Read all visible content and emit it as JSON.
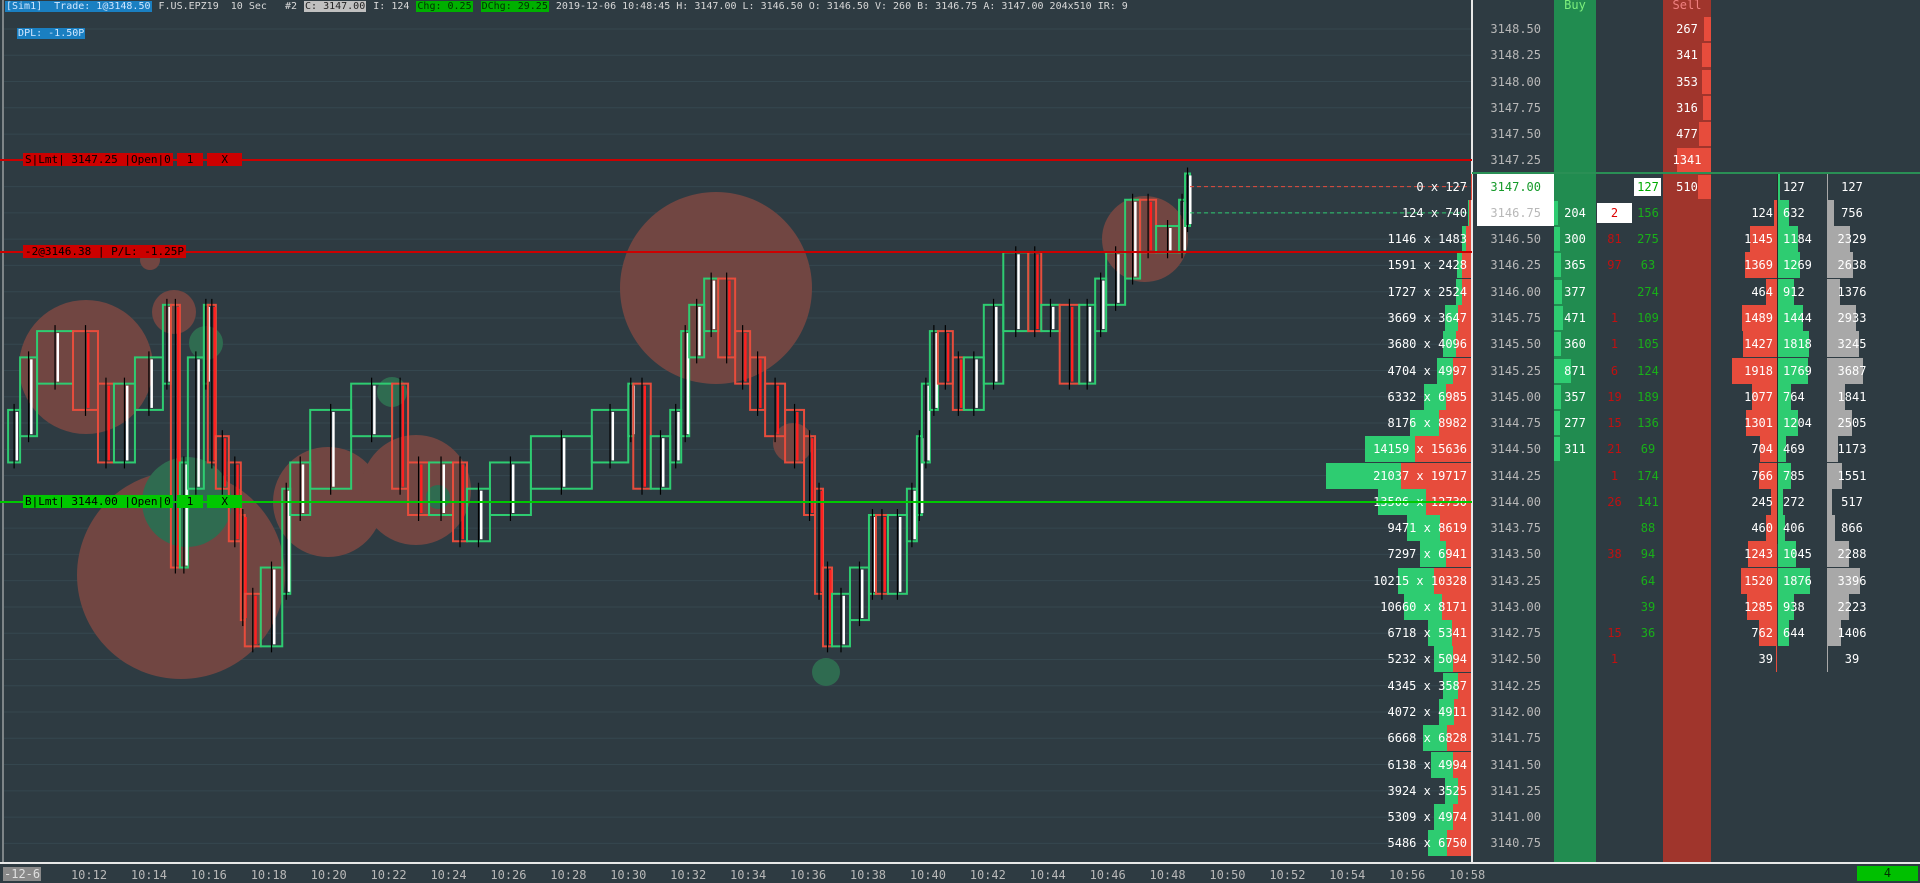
{
  "header": {
    "line1": [
      {
        "text": "[Sim1]  Trade: 1@3148.50",
        "bg": "#1a7fc1",
        "fg": "#cfe6ff"
      },
      {
        "text": " F.US.EPZ19  10 Sec   #2 ",
        "bg": "",
        "fg": "#d8d8d8"
      },
      {
        "text": "C: 3147.00",
        "bg": "#c0c0c0",
        "fg": "#222222"
      },
      {
        "text": " I: 124 ",
        "bg": "",
        "fg": "#d8d8d8"
      },
      {
        "text": "Chg: 0.25",
        "bg": "#00b000",
        "fg": "#003300"
      },
      {
        "text": " ",
        "bg": "",
        "fg": "#d8d8d8"
      },
      {
        "text": "DChg: 29.25",
        "bg": "#00b000",
        "fg": "#003300"
      },
      {
        "text": " 2019-12-06 10:48:45 H: 3147.00 L: 3146.50 O: 3146.50 V: 260 B: 3146.75 A: 3147.00 204x510 IR: 9",
        "bg": "",
        "fg": "#d8d8d8"
      }
    ],
    "line2": {
      "text": "DPL: -1.50P",
      "bg": "#1a7fc1",
      "fg": "#cfe6ff"
    }
  },
  "orders": {
    "sell_limit": {
      "label": "S|Lmt| 3147.25 |Open|0",
      "qty": "1",
      "cancel": "X",
      "price": 3147.25,
      "color": "#cc0000"
    },
    "position": {
      "label": "-2@3146.38 | P/L: -1.25P",
      "price": 3146.38,
      "color": "#cc0000"
    },
    "buy_limit": {
      "label": "B|Lmt| 3144.00 |Open|0",
      "qty": "1",
      "cancel": "X",
      "price": 3144.0,
      "color": "#00c800"
    }
  },
  "colors": {
    "up": "#2ecc71",
    "down": "#e74c3c",
    "buy_col": "#218c50",
    "sell_col": "#a0352c",
    "bg": "#2e3b42",
    "total": "#a8a8a8"
  },
  "price_path": [
    [
      "10:09:18",
      3144.5
    ],
    [
      "10:09:42",
      3144.75
    ],
    [
      "10:10:16",
      3145.25
    ],
    [
      "10:11:28",
      3145.5
    ],
    [
      "10:12:18",
      3145.0
    ],
    [
      "10:12:50",
      3144.5
    ],
    [
      "10:13:32",
      3145.0
    ],
    [
      "10:14:28",
      3145.25
    ],
    [
      "10:14:44",
      3145.75
    ],
    [
      "10:15:02",
      3143.5
    ],
    [
      "10:15:18",
      3144.25
    ],
    [
      "10:15:50",
      3145.25
    ],
    [
      "10:15:58",
      3145.75
    ],
    [
      "10:16:14",
      3144.5
    ],
    [
      "10:16:40",
      3144.25
    ],
    [
      "10:17:04",
      3143.75
    ],
    [
      "10:17:12",
      3143.0
    ],
    [
      "10:17:44",
      3142.75
    ],
    [
      "10:18:27",
      3143.25
    ],
    [
      "10:18:43",
      3144.0
    ],
    [
      "10:19:23",
      3144.25
    ],
    [
      "10:20:45",
      3144.75
    ],
    [
      "10:22:07",
      3145.0
    ],
    [
      "10:22:39",
      3144.25
    ],
    [
      "10:23:21",
      3144.0
    ],
    [
      "10:24:09",
      3144.25
    ],
    [
      "10:24:37",
      3143.75
    ],
    [
      "10:25:23",
      3144.0
    ],
    [
      "10:26:45",
      3144.25
    ],
    [
      "10:28:47",
      3144.5
    ],
    [
      "10:30:00",
      3144.75
    ],
    [
      "10:30:10",
      3145.0
    ],
    [
      "10:30:45",
      3144.25
    ],
    [
      "10:31:24",
      3144.5
    ],
    [
      "10:31:46",
      3144.75
    ],
    [
      "10:32:02",
      3145.5
    ],
    [
      "10:32:32",
      3145.75
    ],
    [
      "10:33:00",
      3146.0
    ],
    [
      "10:33:34",
      3145.5
    ],
    [
      "10:34:04",
      3145.25
    ],
    [
      "10:34:34",
      3145.0
    ],
    [
      "10:35:14",
      3144.75
    ],
    [
      "10:35:52",
      3144.5
    ],
    [
      "10:36:14",
      3144.0
    ],
    [
      "10:36:30",
      3143.25
    ],
    [
      "10:36:48",
      3142.75
    ],
    [
      "10:37:24",
      3143.0
    ],
    [
      "10:38:02",
      3143.25
    ],
    [
      "10:38:16",
      3143.75
    ],
    [
      "10:38:40",
      3143.25
    ],
    [
      "10:39:18",
      3143.75
    ],
    [
      "10:39:38",
      3144.0
    ],
    [
      "10:39:48",
      3144.5
    ],
    [
      "10:40:04",
      3145.0
    ],
    [
      "10:40:20",
      3145.5
    ],
    [
      "10:40:50",
      3145.25
    ],
    [
      "10:41:12",
      3145.0
    ],
    [
      "10:41:52",
      3145.25
    ],
    [
      "10:42:31",
      3145.75
    ],
    [
      "10:43:21",
      3146.25
    ],
    [
      "10:43:47",
      3145.75
    ],
    [
      "10:44:24",
      3145.75
    ],
    [
      "10:45:03",
      3145.25
    ],
    [
      "10:45:35",
      3145.75
    ],
    [
      "10:45:57",
      3146.0
    ],
    [
      "10:46:35",
      3146.25
    ],
    [
      "10:47:05",
      3146.75
    ],
    [
      "10:47:37",
      3146.5
    ],
    [
      "10:48:23",
      3146.5
    ],
    [
      "10:48:35",
      3146.75
    ],
    [
      "10:48:45",
      3147.0
    ]
  ],
  "time_axis": {
    "date_label": "-12-6",
    "labels": [
      "10:12",
      "10:14",
      "10:16",
      "10:18",
      "10:20",
      "10:22",
      "10:24",
      "10:26",
      "10:28",
      "10:30",
      "10:32",
      "10:34",
      "10:36",
      "10:38",
      "10:40",
      "10:42",
      "10:44",
      "10:46",
      "10:48",
      "10:50",
      "10:52",
      "10:54",
      "10:56",
      "10:58"
    ]
  },
  "status_badge": "4",
  "ladder": {
    "buy_header": "Buy",
    "sell_header": "Sell",
    "rows": [
      {
        "price": "3148.50",
        "sell": 267
      },
      {
        "price": "3148.25",
        "sell": 341
      },
      {
        "price": "3148.00",
        "sell": 353
      },
      {
        "price": "3147.75",
        "sell": 316
      },
      {
        "price": "3147.50",
        "sell": 477
      },
      {
        "price": "3147.25",
        "sell": 1341
      },
      {
        "price": "3147.00",
        "bid": 0,
        "ask": 127,
        "sell": 510,
        "ask_small": 127,
        "buy_vol": 127,
        "total": 127
      },
      {
        "price": "3146.75",
        "bid": 124,
        "ask": 740,
        "buy": 204,
        "bid_small": 2,
        "ask_small": 156,
        "sell_vol": 124,
        "buy_vol": 632,
        "total": 756
      },
      {
        "price": "3146.50",
        "bid": 1146,
        "ask": 1483,
        "buy": 300,
        "bid_small": 81,
        "ask_small": 275,
        "sell_vol": 1145,
        "buy_vol": 1184,
        "total": 2329
      },
      {
        "price": "3146.25",
        "bid": 1591,
        "ask": 2428,
        "buy": 365,
        "bid_small": 97,
        "ask_small": 63,
        "sell_vol": 1369,
        "buy_vol": 1269,
        "total": 2638
      },
      {
        "price": "3146.00",
        "bid": 1727,
        "ask": 2524,
        "buy": 377,
        "ask_small": 274,
        "sell_vol": 464,
        "buy_vol": 912,
        "total": 1376
      },
      {
        "price": "3145.75",
        "bid": 3669,
        "ask": 3647,
        "buy": 471,
        "bid_small": 1,
        "ask_small": 109,
        "sell_vol": 1489,
        "buy_vol": 1444,
        "total": 2933
      },
      {
        "price": "3145.50",
        "bid": 3680,
        "ask": 4096,
        "buy": 360,
        "bid_small": 1,
        "ask_small": 105,
        "sell_vol": 1427,
        "buy_vol": 1818,
        "total": 3245
      },
      {
        "price": "3145.25",
        "bid": 4704,
        "ask": 4997,
        "buy": 871,
        "bid_small": 6,
        "ask_small": 124,
        "sell_vol": 1918,
        "buy_vol": 1769,
        "total": 3687
      },
      {
        "price": "3145.00",
        "bid": 6332,
        "ask": 6985,
        "buy": 357,
        "bid_small": 19,
        "ask_small": 189,
        "sell_vol": 1077,
        "buy_vol": 764,
        "total": 1841
      },
      {
        "price": "3144.75",
        "bid": 8176,
        "ask": 8982,
        "buy": 277,
        "bid_small": 15,
        "ask_small": 136,
        "sell_vol": 1301,
        "buy_vol": 1204,
        "total": 2505
      },
      {
        "price": "3144.50",
        "bid": 14159,
        "ask": 15636,
        "buy": 311,
        "bid_small": 21,
        "ask_small": 69,
        "sell_vol": 704,
        "buy_vol": 469,
        "total": 1173
      },
      {
        "price": "3144.25",
        "bid": 21037,
        "ask": 19717,
        "bid_small": 1,
        "ask_small": 174,
        "sell_vol": 766,
        "buy_vol": 785,
        "total": 1551
      },
      {
        "price": "3144.00",
        "bid": 13506,
        "ask": 12730,
        "bid_small": 26,
        "ask_small": 141,
        "sell_vol": 245,
        "buy_vol": 272,
        "total": 517
      },
      {
        "price": "3143.75",
        "bid": 9471,
        "ask": 8619,
        "ask_small": 88,
        "sell_vol": 460,
        "buy_vol": 406,
        "total": 866
      },
      {
        "price": "3143.50",
        "bid": 7297,
        "ask": 6941,
        "bid_small": 38,
        "ask_small": 94,
        "sell_vol": 1243,
        "buy_vol": 1045,
        "total": 2288
      },
      {
        "price": "3143.25",
        "bid": 10215,
        "ask": 10328,
        "ask_small": 64,
        "sell_vol": 1520,
        "buy_vol": 1876,
        "total": 3396
      },
      {
        "price": "3143.00",
        "bid": 10660,
        "ask": 8171,
        "ask_small": 39,
        "sell_vol": 1285,
        "buy_vol": 938,
        "total": 2223
      },
      {
        "price": "3142.75",
        "bid": 6718,
        "ask": 5341,
        "bid_small": 15,
        "ask_small": 36,
        "sell_vol": 762,
        "buy_vol": 644,
        "total": 1406
      },
      {
        "price": "3142.50",
        "bid": 5232,
        "ask": 5094,
        "bid_small": 1,
        "sell_vol": 39,
        "total": 39
      },
      {
        "price": "3142.25",
        "bid": 4345,
        "ask": 3587
      },
      {
        "price": "3142.00",
        "bid": 4072,
        "ask": 4911
      },
      {
        "price": "3141.75",
        "bid": 6668,
        "ask": 6828
      },
      {
        "price": "3141.50",
        "bid": 6138,
        "ask": 4994
      },
      {
        "price": "3141.25",
        "bid": 3924,
        "ask": 3525
      },
      {
        "price": "3141.00",
        "bid": 5309,
        "ask": 4974
      },
      {
        "price": "3140.75",
        "bid": 5486,
        "ask": 6750
      }
    ]
  }
}
